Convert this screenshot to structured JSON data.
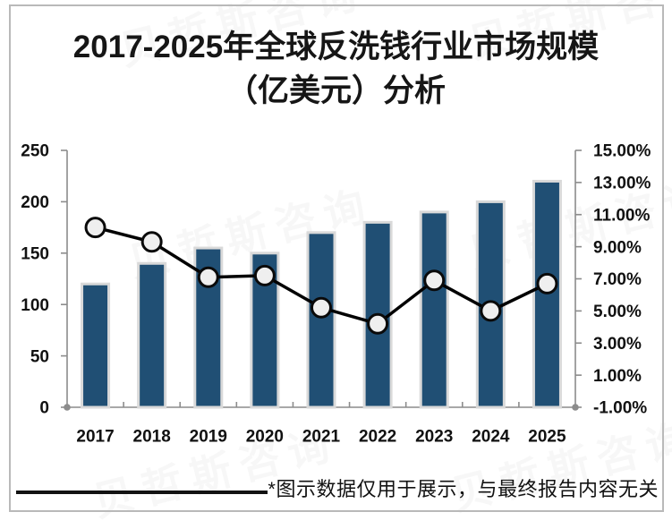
{
  "page": {
    "background": "#ffffff",
    "frame_color": "#b9b9b9"
  },
  "title": {
    "line1": "2017-2025年全球反洗钱行业市场规模",
    "line2": "（亿美元）分析"
  },
  "watermark": {
    "text": "贝哲斯咨询"
  },
  "footer": {
    "note": "*图示数据仅用于展示，与最终报告内容无关"
  },
  "chart_data": {
    "type": "combo",
    "title": "2017-2025年全球反洗钱行业市场规模（亿美元）分析",
    "categories": [
      "2017",
      "2018",
      "2019",
      "2020",
      "2021",
      "2022",
      "2023",
      "2024",
      "2025"
    ],
    "series": [
      {
        "type": "bar",
        "axis": "left",
        "values": [
          120,
          140,
          155,
          150,
          170,
          180,
          190,
          200,
          220
        ],
        "color": "#204F74",
        "border_color": "#d9d9d9"
      },
      {
        "type": "line",
        "axis": "right",
        "values": [
          10.2,
          9.3,
          7.1,
          7.2,
          5.2,
          4.2,
          6.9,
          5.0,
          6.7
        ],
        "color": "#000000",
        "marker_fill": "#efefef",
        "marker_stroke": "#0a0a0a"
      }
    ],
    "left_axis": {
      "min": 0,
      "max": 250,
      "tick_step": 50,
      "tick_labels": [
        "250",
        "200",
        "150",
        "100",
        "50",
        "0"
      ]
    },
    "right_axis": {
      "min": -1,
      "max": 15,
      "tick_step": 2,
      "tick_labels": [
        "15.00%",
        "13.00%",
        "11.00%",
        "9.00%",
        "7.00%",
        "5.00%",
        "3.00%",
        "1.00%",
        "-1.00%"
      ]
    },
    "axis_color": "#8c8c8c",
    "label_color": "#111111",
    "grid": false,
    "legend": "none"
  }
}
